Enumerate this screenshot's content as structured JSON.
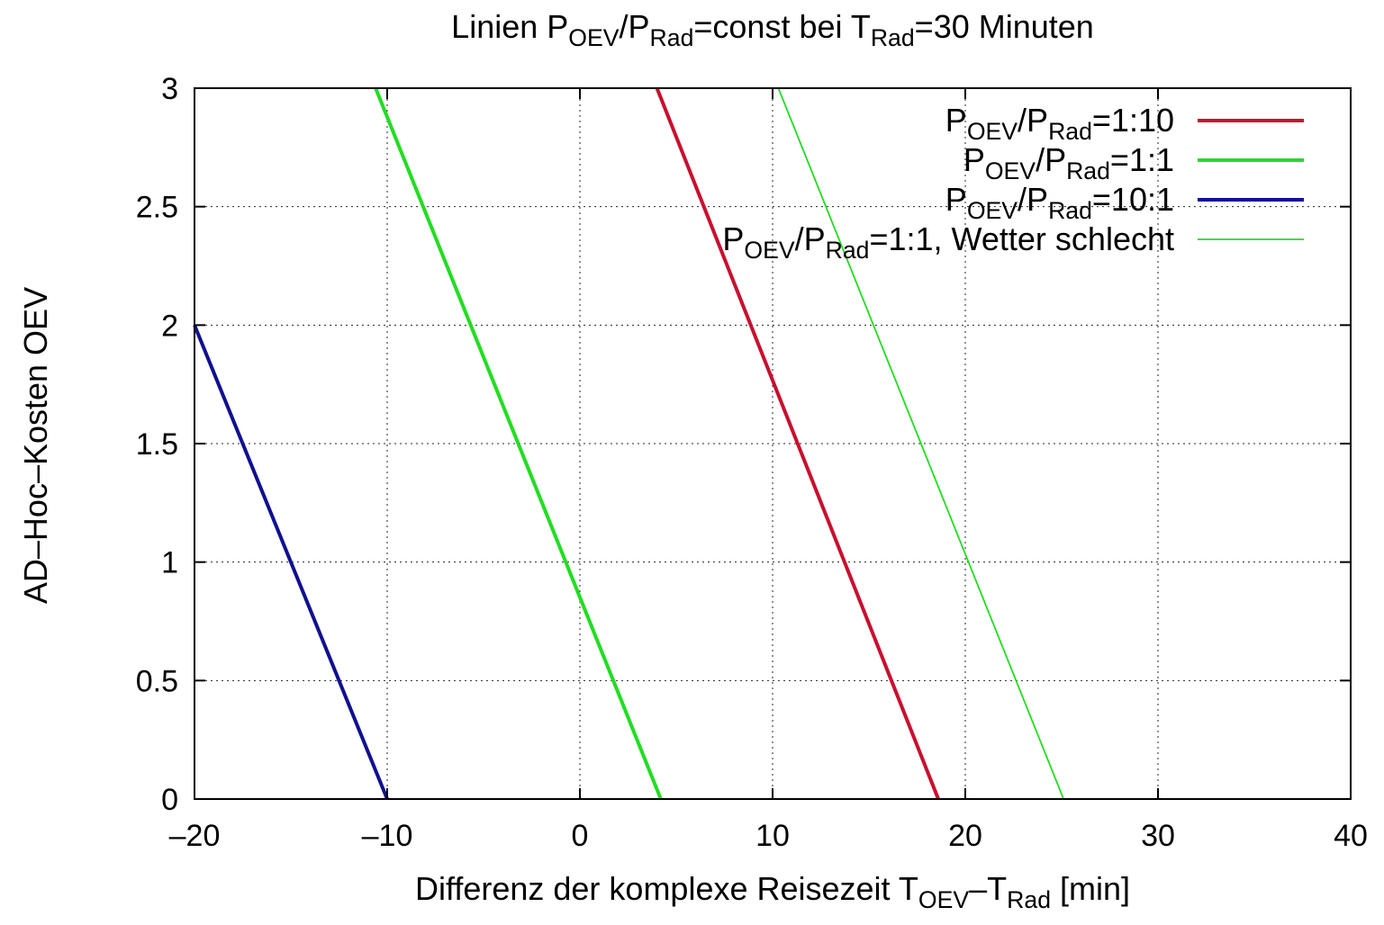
{
  "chart_data": {
    "type": "line",
    "title": {
      "parts": [
        {
          "t": "Linien  P",
          "sub": false
        },
        {
          "t": "OEV",
          "sub": true
        },
        {
          "t": "/P",
          "sub": false
        },
        {
          "t": "Rad",
          "sub": true
        },
        {
          "t": "=const bei T",
          "sub": false
        },
        {
          "t": "Rad",
          "sub": true
        },
        {
          "t": "=30 Minuten",
          "sub": false
        }
      ]
    },
    "xlabel": {
      "parts": [
        {
          "t": "Differenz der komplexe Reisezeit T",
          "sub": false
        },
        {
          "t": "OEV",
          "sub": true
        },
        {
          "t": "–T",
          "sub": false
        },
        {
          "t": "Rad",
          "sub": true
        },
        {
          "t": " [min]",
          "sub": false
        }
      ]
    },
    "ylabel": "AD–Hoc–Kosten OEV",
    "xlim": [
      -20,
      40
    ],
    "ylim": [
      0,
      3
    ],
    "x_ticks": [
      -20,
      -10,
      0,
      10,
      20,
      30,
      40
    ],
    "x_tick_labels": [
      "–20",
      "–10",
      "0",
      "10",
      "20",
      "30",
      "40"
    ],
    "y_ticks": [
      0,
      0.5,
      1,
      1.5,
      2,
      2.5,
      3
    ],
    "y_tick_labels": [
      "0",
      "0.5",
      "1",
      "1.5",
      "2",
      "2.5",
      "3"
    ],
    "grid": true,
    "legend_position": "top-right",
    "series": [
      {
        "name": "P_OEV/P_Rad=1:10",
        "label_parts": [
          {
            "t": "P",
            "sub": false
          },
          {
            "t": "OEV",
            "sub": true
          },
          {
            "t": "/P",
            "sub": false
          },
          {
            "t": "Rad",
            "sub": true
          },
          {
            "t": "=1:10",
            "sub": false
          }
        ],
        "color": "#c8102e",
        "line_width": "thick",
        "x": [
          4.0,
          18.6
        ],
        "y": [
          3,
          0
        ]
      },
      {
        "name": "P_OEV/P_Rad=1:1",
        "label_parts": [
          {
            "t": "P",
            "sub": false
          },
          {
            "t": "OEV",
            "sub": true
          },
          {
            "t": "/P",
            "sub": false
          },
          {
            "t": "Rad",
            "sub": true
          },
          {
            "t": "=1:1",
            "sub": false
          }
        ],
        "color": "#22dd22",
        "line_width": "thick",
        "x": [
          -10.6,
          4.2
        ],
        "y": [
          3,
          0
        ]
      },
      {
        "name": "P_OEV/P_Rad=10:1",
        "label_parts": [
          {
            "t": "P",
            "sub": false
          },
          {
            "t": "OEV",
            "sub": true
          },
          {
            "t": "/P",
            "sub": false
          },
          {
            "t": "Rad",
            "sub": true
          },
          {
            "t": "=10:1",
            "sub": false
          }
        ],
        "color": "#101090",
        "line_width": "thick",
        "x": [
          -20,
          -10
        ],
        "y": [
          2,
          0
        ]
      },
      {
        "name": "P_OEV/P_Rad=1:1, Wetter schlecht",
        "label_parts": [
          {
            "t": "P",
            "sub": false
          },
          {
            "t": "OEV",
            "sub": true
          },
          {
            "t": "/P",
            "sub": false
          },
          {
            "t": "Rad",
            "sub": true
          },
          {
            "t": "=1:1, Wetter schlecht",
            "sub": false
          }
        ],
        "color": "#22dd22",
        "line_width": "thin",
        "x": [
          10.3,
          25.1
        ],
        "y": [
          3,
          0
        ]
      }
    ]
  }
}
